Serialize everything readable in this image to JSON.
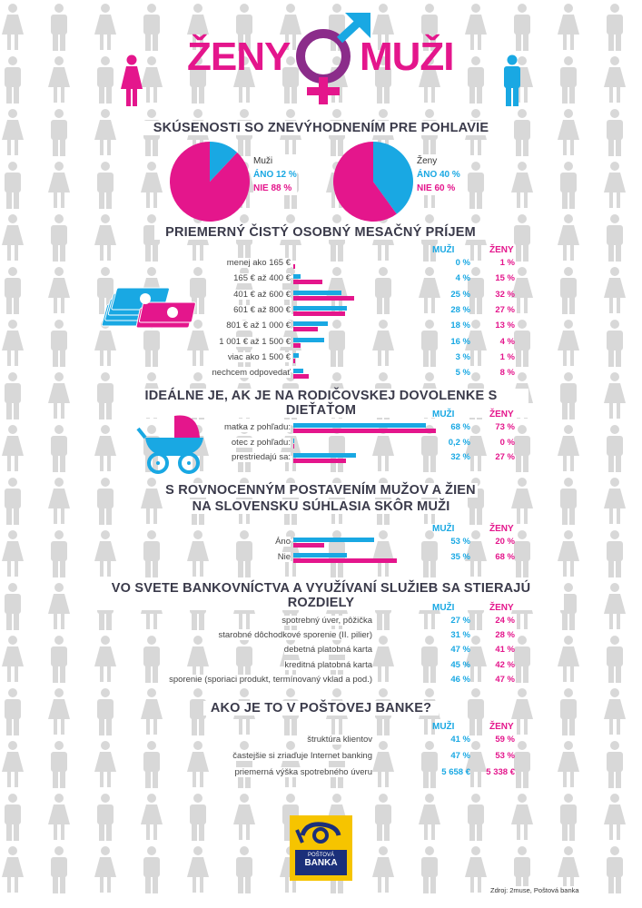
{
  "header": {
    "left": "ŽENY",
    "right": "MUŽI"
  },
  "colors": {
    "men": "#19a8e3",
    "women": "#e4168c",
    "silhouette": "#d8d8d8"
  },
  "col_headers": {
    "men": "MUŽI",
    "women": "ŽENY"
  },
  "section1": {
    "title": "SKÚSENOSTI SO ZNEVÝHODNENÍM PRE POHLAVIE",
    "men": {
      "group": "Muži",
      "yes_label": "ÁNO 12 %",
      "no_label": "NIE 88 %"
    },
    "women": {
      "group": "Ženy",
      "yes_label": "ÁNO 40 %",
      "no_label": "NIE 60 %"
    }
  },
  "section2": {
    "title": "PRIEMERNÝ ČISTÝ OSOBNÝ MESAČNÝ PRÍJEM",
    "rows": [
      {
        "label": "menej ako 165 €",
        "men": "0 %",
        "women": "1 %"
      },
      {
        "label": "165 € až 400 €",
        "men": "4 %",
        "women": "15 %"
      },
      {
        "label": "401 € až 600 €",
        "men": "25 %",
        "women": "32 %"
      },
      {
        "label": "601 € až 800 €",
        "men": "28 %",
        "women": "27 %"
      },
      {
        "label": "801 € až 1 000 €",
        "men": "18 %",
        "women": "13 %"
      },
      {
        "label": "1 001 € až 1 500 €",
        "men": "16 %",
        "women": "4 %"
      },
      {
        "label": "viac ako 1 500 €",
        "men": "3 %",
        "women": "1 %"
      },
      {
        "label": "nechcem odpovedať",
        "men": "5 %",
        "women": "8 %"
      }
    ]
  },
  "section3": {
    "title": "IDEÁLNE JE, AK JE NA RODIČOVSKEJ DOVOLENKE S DIEŤAŤOM",
    "rows": [
      {
        "label": "matka z pohľadu:",
        "men": "68 %",
        "women": "73 %"
      },
      {
        "label": "otec z pohľadu:",
        "men": "0,2 %",
        "women": "0 %"
      },
      {
        "label": "prestriedajú sa:",
        "men": "32 %",
        "women": "27 %"
      }
    ]
  },
  "section4": {
    "title_line1": "S ROVNOCENNÝM POSTAVENÍM MUŽOV A ŽIEN",
    "title_line2": "NA SLOVENSKU SÚHLASIA SKÔR MUŽI",
    "rows": [
      {
        "label": "Áno",
        "men": "53 %",
        "women": "20 %"
      },
      {
        "label": "Nie",
        "men": "35 %",
        "women": "68 %"
      }
    ]
  },
  "section5": {
    "title": "VO SVETE BANKOVNÍCTVA A VYUŽÍVANÍ SLUŽIEB SA STIERAJÚ ROZDIELY",
    "rows": [
      {
        "label": "spotrebný úver, pôžička",
        "men": "27 %",
        "women": "24 %"
      },
      {
        "label": "starobné dôchodkové sporenie (II. pilier)",
        "men": "31 %",
        "women": "28 %"
      },
      {
        "label": "debetná platobná karta",
        "men": "47 %",
        "women": "41 %"
      },
      {
        "label": "kreditná platobná karta",
        "men": "45 %",
        "women": "42 %"
      },
      {
        "label": "sporenie (sporiaci produkt, termínovaný vklad a  pod.)",
        "men": "46 %",
        "women": "47 %"
      }
    ]
  },
  "section6": {
    "title": "AKO JE TO V POŠTOVEJ BANKE?",
    "rows": [
      {
        "label": "štruktúra klientov",
        "men": "41 %",
        "women": "59 %"
      },
      {
        "label": "častejšie si zriaďuje Internet banking",
        "men": "47 %",
        "women": "53 %"
      },
      {
        "label": "priemerná výška spotrebného úveru",
        "men": "5 658 €",
        "women": "5 338 €"
      }
    ]
  },
  "logo": {
    "line1": "POŠTOVÁ",
    "line2": "BANKA"
  },
  "source": "Zdroj: 2muse, Poštová banka",
  "chart_data": [
    {
      "type": "pie",
      "title": "SKÚSENOSTI SO ZNEVÝHODNENÍM PRE POHLAVIE",
      "group": "Muži",
      "slices": [
        {
          "name": "ÁNO",
          "value": 12
        },
        {
          "name": "NIE",
          "value": 88
        }
      ]
    },
    {
      "type": "pie",
      "title": "SKÚSENOSTI SO ZNEVÝHODNENÍM PRE POHLAVIE",
      "group": "Ženy",
      "slices": [
        {
          "name": "ÁNO",
          "value": 40
        },
        {
          "name": "NIE",
          "value": 60
        }
      ]
    },
    {
      "type": "bar",
      "title": "PRIEMERNÝ ČISTÝ OSOBNÝ MESAČNÝ PRÍJEM",
      "categories": [
        "menej ako 165 €",
        "165 € až 400 €",
        "401 € až 600 €",
        "601 € až 800 €",
        "801 € až 1 000 €",
        "1 001 € až 1 500 €",
        "viac ako 1 500 €",
        "nechcem odpovedať"
      ],
      "series": [
        {
          "name": "MUŽI",
          "values": [
            0,
            4,
            25,
            28,
            18,
            16,
            3,
            5
          ]
        },
        {
          "name": "ŽENY",
          "values": [
            1,
            15,
            32,
            27,
            13,
            4,
            1,
            8
          ]
        }
      ]
    },
    {
      "type": "bar",
      "title": "IDEÁLNE JE, AK JE NA RODIČOVSKEJ DOVOLENKE S DIEŤAŤOM",
      "categories": [
        "matka z pohľadu:",
        "otec z pohľadu:",
        "prestriedajú sa:"
      ],
      "series": [
        {
          "name": "MUŽI",
          "values": [
            68,
            0.2,
            32
          ]
        },
        {
          "name": "ŽENY",
          "values": [
            73,
            0,
            27
          ]
        }
      ]
    },
    {
      "type": "bar",
      "title": "S ROVNOCENNÝM POSTAVENÍM MUŽOV A ŽIEN NA SLOVENSKU SÚHLASIA SKÔR MUŽI",
      "categories": [
        "Áno",
        "Nie"
      ],
      "series": [
        {
          "name": "MUŽI",
          "values": [
            53,
            35
          ]
        },
        {
          "name": "ŽENY",
          "values": [
            20,
            68
          ]
        }
      ]
    },
    {
      "type": "table",
      "title": "VO SVETE BANKOVNÍCTVA A VYUŽÍVANÍ SLUŽIEB SA STIERAJÚ ROZDIELY",
      "categories": [
        "spotrebný úver, pôžička",
        "starobné dôchodkové sporenie (II. pilier)",
        "debetná platobná karta",
        "kreditná platobná karta",
        "sporenie (sporiaci produkt, termínovaný vklad a  pod.)"
      ],
      "series": [
        {
          "name": "MUŽI",
          "values": [
            27,
            31,
            47,
            45,
            46
          ]
        },
        {
          "name": "ŽENY",
          "values": [
            24,
            28,
            41,
            42,
            47
          ]
        }
      ]
    },
    {
      "type": "table",
      "title": "AKO JE TO V POŠTOVEJ BANKE?",
      "categories": [
        "štruktúra klientov",
        "častejšie si zriaďuje Internet banking",
        "priemerná výška spotrebného úveru"
      ],
      "series": [
        {
          "name": "MUŽI",
          "values": [
            41,
            47,
            5658
          ]
        },
        {
          "name": "ŽENY",
          "values": [
            59,
            53,
            5338
          ]
        }
      ]
    }
  ]
}
